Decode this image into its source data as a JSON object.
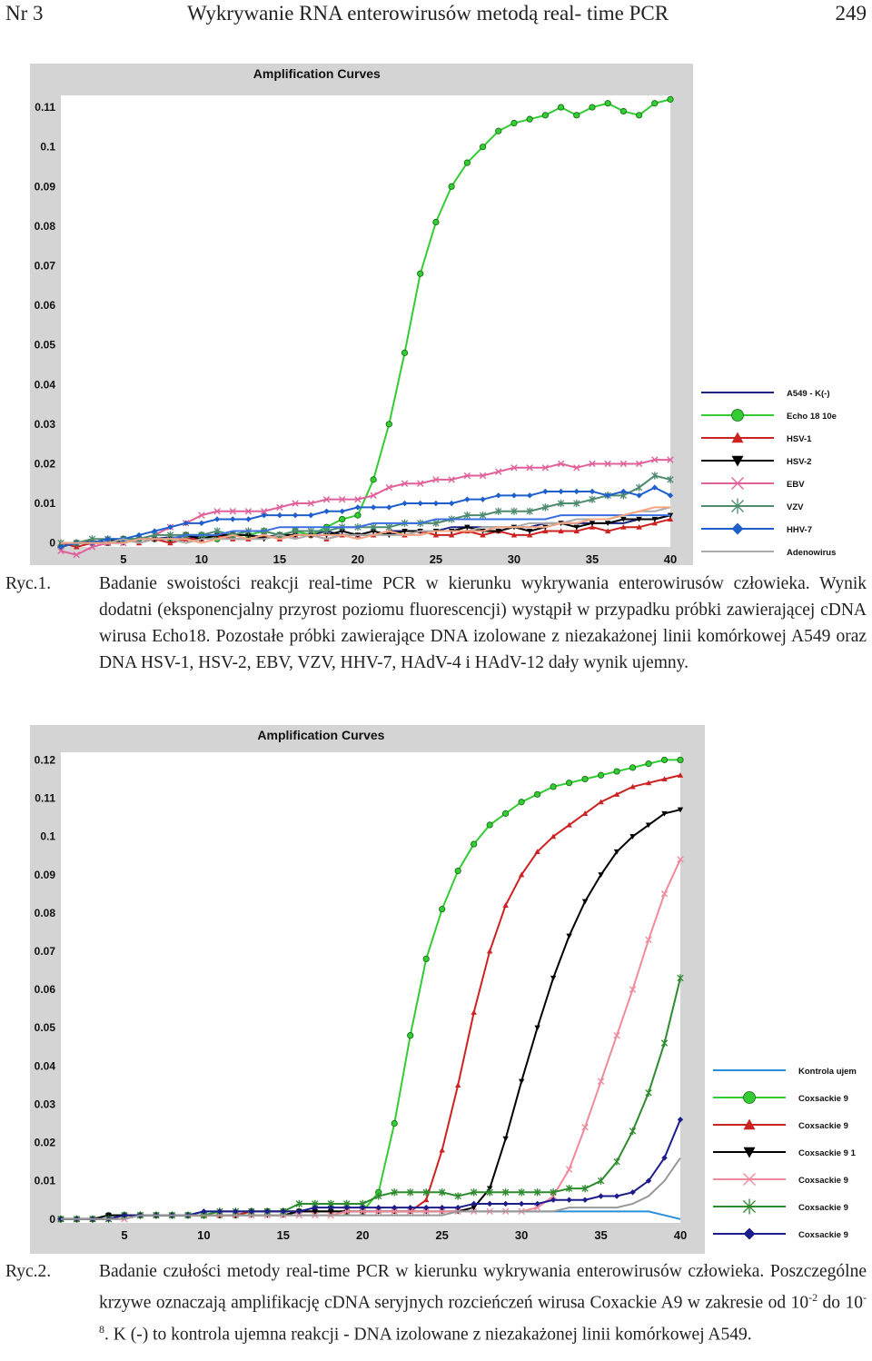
{
  "header": {
    "left": "Nr 3",
    "center": "Wykrywanie RNA enterowirusów metodą real- time PCR",
    "right": "249"
  },
  "figure1": {
    "caption_label": "Ryc.1.",
    "caption_text": "Badanie swoistości reakcji real-time PCR w kierunku wykrywania enterowirusów człowieka. Wynik dodatni (eksponencjalny przyrost poziomu fluorescencji) wystąpił w przypadku próbki zawierającej cDNA wirusa Echo18. Pozostałe próbki zawierające DNA izolowane z niezakażonej linii komórkowej A549 oraz DNA HSV-1, HSV-2, EBV, VZV, HHV-7, HAdV-4 i HAdV-12 dały wynik ujemny.",
    "chart_data": {
      "type": "line",
      "title": "Amplification Curves",
      "xlabel": "",
      "ylabel": "",
      "xlim": [
        1,
        40
      ],
      "ylim": [
        -0.001,
        0.113
      ],
      "x_ticks": [
        5,
        10,
        15,
        20,
        25,
        30,
        35,
        40
      ],
      "y_ticks": [
        0,
        0.01,
        0.02,
        0.03,
        0.04,
        0.05,
        0.06,
        0.07,
        0.08,
        0.09,
        0.1,
        0.11
      ],
      "y_tick_labels": [
        "0",
        "0.01",
        "0.02",
        "0.03",
        "0.04",
        "0.05",
        "0.06",
        "0.07",
        "0.08",
        "0.09",
        "0.1",
        "0.11"
      ],
      "legend_position": "right",
      "grid": false,
      "series": [
        {
          "name": "A549 - K(-)",
          "color": "#1a237e",
          "marker": "none",
          "values": [
            0,
            0,
            0.0005,
            0,
            0.001,
            0.001,
            0.001,
            0.0015,
            0.001,
            0.002,
            0.001,
            0.002,
            0.002,
            0.0015,
            0.002,
            0.002,
            0.002,
            0.003,
            0.002,
            0.002,
            0.002,
            0.003,
            0.003,
            0.003,
            0.003,
            0.004,
            0.004,
            0.004,
            0.004,
            0.004,
            0.004,
            0.005,
            0.005,
            0.005,
            0.005,
            0.005,
            0.005,
            0.006,
            0.006,
            0.007
          ]
        },
        {
          "name": "Echo 18 10e",
          "color": "#33cc33",
          "marker": "circle",
          "values": [
            -0.001,
            0,
            0,
            0,
            0.001,
            0.001,
            0.001,
            0.001,
            0.002,
            0.002,
            0.001,
            0.002,
            0.002,
            0.003,
            0.002,
            0.003,
            0.002,
            0.004,
            0.006,
            0.007,
            0.016,
            0.03,
            0.048,
            0.068,
            0.081,
            0.09,
            0.096,
            0.1,
            0.104,
            0.106,
            0.107,
            0.108,
            0.11,
            0.108,
            0.11,
            0.111,
            0.109,
            0.108,
            0.111,
            0.112
          ]
        },
        {
          "name": "HSV-1",
          "color": "#cc2222",
          "marker": "triangle-up",
          "values": [
            0,
            -0.001,
            0,
            0,
            0.001,
            0,
            0.001,
            0,
            0.001,
            0.001,
            0.002,
            0.001,
            0.001,
            0.002,
            0.001,
            0.002,
            0.002,
            0.001,
            0.002,
            0.002,
            0.002,
            0.003,
            0.002,
            0.003,
            0.002,
            0.002,
            0.003,
            0.002,
            0.003,
            0.002,
            0.002,
            0.003,
            0.003,
            0.003,
            0.004,
            0.003,
            0.004,
            0.004,
            0.005,
            0.006
          ]
        },
        {
          "name": "HSV-2",
          "color": "#000000",
          "marker": "triangle-down",
          "values": [
            -0.001,
            0,
            0,
            0.001,
            0,
            0.001,
            0.001,
            0.001,
            0.002,
            0.001,
            0.002,
            0.002,
            0.002,
            0.001,
            0.002,
            0.002,
            0.002,
            0.002,
            0.003,
            0.002,
            0.003,
            0.002,
            0.003,
            0.003,
            0.003,
            0.003,
            0.004,
            0.003,
            0.003,
            0.004,
            0.003,
            0.004,
            0.005,
            0.004,
            0.005,
            0.005,
            0.006,
            0.006,
            0.006,
            0.007
          ]
        },
        {
          "name": "EBV",
          "color": "#e0609a",
          "marker": "x",
          "values": [
            -0.002,
            -0.003,
            -0.001,
            0,
            0,
            0.001,
            0.002,
            0.004,
            0.005,
            0.007,
            0.008,
            0.008,
            0.008,
            0.008,
            0.009,
            0.01,
            0.01,
            0.011,
            0.011,
            0.011,
            0.012,
            0.014,
            0.015,
            0.015,
            0.016,
            0.016,
            0.017,
            0.017,
            0.018,
            0.019,
            0.019,
            0.019,
            0.02,
            0.019,
            0.02,
            0.02,
            0.02,
            0.02,
            0.021,
            0.021
          ]
        },
        {
          "name": "VZV",
          "color": "#4e8a6e",
          "marker": "asterisk",
          "values": [
            0,
            0,
            0.001,
            0.001,
            0.001,
            0.001,
            0.002,
            0.002,
            0.002,
            0.002,
            0.003,
            0.002,
            0.003,
            0.003,
            0.002,
            0.003,
            0.003,
            0.003,
            0.004,
            0.004,
            0.004,
            0.004,
            0.005,
            0.005,
            0.005,
            0.006,
            0.007,
            0.007,
            0.008,
            0.008,
            0.008,
            0.009,
            0.01,
            0.01,
            0.011,
            0.012,
            0.012,
            0.014,
            0.017,
            0.016
          ]
        },
        {
          "name": "HHV-7",
          "color": "#1f5fcc",
          "marker": "diamond",
          "values": [
            -0.001,
            0,
            0,
            0.001,
            0.001,
            0.002,
            0.003,
            0.004,
            0.005,
            0.005,
            0.006,
            0.006,
            0.006,
            0.007,
            0.007,
            0.007,
            0.007,
            0.008,
            0.008,
            0.009,
            0.009,
            0.009,
            0.01,
            0.01,
            0.01,
            0.01,
            0.011,
            0.011,
            0.012,
            0.012,
            0.012,
            0.013,
            0.013,
            0.013,
            0.013,
            0.012,
            0.013,
            0.012,
            0.014,
            0.012
          ]
        },
        {
          "name": "Adenowirus",
          "color": "#aaaaaa",
          "marker": "none",
          "values": [
            0,
            0,
            0,
            0,
            0.001,
            0,
            0.001,
            0.001,
            0,
            0.001,
            0.001,
            0.001,
            0.001,
            0.001,
            0.002,
            0.001,
            0.002,
            0.001,
            0.002,
            0.002,
            0.002,
            0.002,
            0.002,
            0.003,
            0.003,
            0.003,
            0.003,
            0.004,
            0.004,
            0.004,
            0.005,
            0.005,
            0.005,
            0.006,
            0.006,
            0.006,
            0.007,
            0.008,
            0.008,
            0.009
          ]
        },
        {
          "name": "",
          "color": "#3b6fe0",
          "marker": "none",
          "values": [
            0,
            0,
            0,
            0,
            0,
            0.001,
            0.001,
            0.001,
            0.002,
            0.002,
            0.002,
            0.003,
            0.003,
            0.003,
            0.004,
            0.004,
            0.004,
            0.004,
            0.004,
            0.004,
            0.005,
            0.005,
            0.005,
            0.005,
            0.006,
            0.006,
            0.006,
            0.006,
            0.006,
            0.006,
            0.006,
            0.006,
            0.007,
            0.007,
            0.007,
            0.007,
            0.007,
            0.007,
            0.007,
            0.007
          ]
        },
        {
          "name": "",
          "color": "#f4a582",
          "marker": "none",
          "values": [
            0,
            0,
            0,
            0,
            0,
            0.001,
            0.001,
            0.001,
            0.001,
            0,
            0.001,
            0.002,
            0.001,
            0.002,
            0.001,
            0.002,
            0.002,
            0.002,
            0.002,
            0.001,
            0.002,
            0.003,
            0.002,
            0.002,
            0.003,
            0.003,
            0.003,
            0.003,
            0.004,
            0.004,
            0.004,
            0.004,
            0.005,
            0.005,
            0.006,
            0.006,
            0.007,
            0.008,
            0.009,
            0.009
          ]
        }
      ]
    }
  },
  "figure2": {
    "caption_label": "Ryc.2.",
    "caption_text_1": "Badanie czułości metody real-time PCR w kierunku wykrywania enterowirusów człowieka. Poszczególne krzywe oznaczają amplifikację cDNA seryjnych rozcieńczeń wirusa Coxackie A9 w zakresie od 10",
    "sup_1": "-2",
    "caption_text_2": " do 10",
    "sup_2": "-8",
    "caption_text_3": ". K (-) to kontrola ujemna reakcji - DNA izolowane z niezakażonej linii komórkowej A549.",
    "chart_data": {
      "type": "line",
      "title": "Amplification Curves",
      "xlabel": "",
      "ylabel": "",
      "xlim": [
        1,
        40
      ],
      "ylim": [
        -0.001,
        0.122
      ],
      "x_ticks": [
        5,
        10,
        15,
        20,
        25,
        30,
        35,
        40
      ],
      "y_ticks": [
        0,
        0.01,
        0.02,
        0.03,
        0.04,
        0.05,
        0.06,
        0.07,
        0.08,
        0.09,
        0.1,
        0.11,
        0.12
      ],
      "y_tick_labels": [
        "0",
        "0.01",
        "0.02",
        "0.03",
        "0.04",
        "0.05",
        "0.06",
        "0.07",
        "0.08",
        "0.09",
        "0.1",
        "0.11",
        "0.12"
      ],
      "legend_position": "right",
      "grid": false,
      "series": [
        {
          "name": "Kontrola ujem",
          "color": "#2a8fd8",
          "marker": "none",
          "values": [
            0,
            0,
            0,
            0.001,
            0.001,
            0.001,
            0.001,
            0.001,
            0.001,
            0.002,
            0.002,
            0.002,
            0.002,
            0.002,
            0.002,
            0.002,
            0.002,
            0.002,
            0.002,
            0.002,
            0.002,
            0.002,
            0.002,
            0.002,
            0.002,
            0.002,
            0.002,
            0.002,
            0.002,
            0.002,
            0.002,
            0.002,
            0.002,
            0.002,
            0.002,
            0.002,
            0.002,
            0.002,
            0.001,
            0
          ]
        },
        {
          "name": "Coxsackie 9",
          "color": "#33cc33",
          "marker": "circle",
          "values": [
            0,
            0,
            0,
            0.001,
            0.001,
            0.001,
            0.001,
            0.001,
            0.001,
            0.001,
            0.001,
            0.001,
            0.002,
            0.002,
            0.002,
            0.002,
            0.002,
            0.002,
            0.002,
            0.002,
            0.007,
            0.025,
            0.048,
            0.068,
            0.081,
            0.091,
            0.098,
            0.103,
            0.106,
            0.109,
            0.111,
            0.113,
            0.114,
            0.115,
            0.116,
            0.117,
            0.118,
            0.119,
            0.12,
            0.12
          ]
        },
        {
          "name": "Coxsackie 9",
          "color": "#cc2222",
          "marker": "triangle-up",
          "values": [
            0,
            0,
            0,
            0,
            0.001,
            0.001,
            0.001,
            0.001,
            0.001,
            0.001,
            0.001,
            0.001,
            0.002,
            0.002,
            0.002,
            0.002,
            0.002,
            0.002,
            0.002,
            0.002,
            0.002,
            0.002,
            0.002,
            0.005,
            0.018,
            0.035,
            0.054,
            0.07,
            0.082,
            0.09,
            0.096,
            0.1,
            0.103,
            0.106,
            0.109,
            0.111,
            0.113,
            0.114,
            0.115,
            0.116
          ]
        },
        {
          "name": "Coxsackie 9 1",
          "color": "#000000",
          "marker": "triangle-down",
          "values": [
            0,
            0,
            0,
            0.001,
            0.001,
            0.001,
            0.001,
            0.001,
            0.001,
            0.001,
            0.001,
            0.001,
            0.001,
            0.001,
            0.001,
            0.002,
            0.002,
            0.002,
            0.002,
            0.002,
            0.002,
            0.002,
            0.002,
            0.002,
            0.002,
            0.002,
            0.003,
            0.008,
            0.021,
            0.036,
            0.05,
            0.063,
            0.074,
            0.083,
            0.09,
            0.096,
            0.1,
            0.103,
            0.106,
            0.107
          ]
        },
        {
          "name": "Coxsackie 9",
          "color": "#f08a9a",
          "marker": "x",
          "values": [
            0,
            0,
            0,
            0,
            0,
            0.001,
            0.001,
            0.001,
            0.001,
            0.001,
            0.001,
            0.001,
            0.001,
            0.001,
            0.001,
            0.001,
            0.001,
            0.001,
            0.002,
            0.002,
            0.002,
            0.002,
            0.002,
            0.002,
            0.002,
            0.002,
            0.002,
            0.002,
            0.002,
            0.002,
            0.003,
            0.006,
            0.013,
            0.024,
            0.036,
            0.048,
            0.06,
            0.073,
            0.085,
            0.094
          ]
        },
        {
          "name": "Coxsackie 9",
          "color": "#2e8b2e",
          "marker": "asterisk",
          "values": [
            0,
            0,
            0,
            0,
            0.001,
            0.001,
            0.001,
            0.001,
            0.001,
            0.001,
            0.002,
            0.002,
            0.002,
            0.002,
            0.002,
            0.004,
            0.004,
            0.004,
            0.004,
            0.004,
            0.006,
            0.007,
            0.007,
            0.007,
            0.007,
            0.006,
            0.007,
            0.007,
            0.007,
            0.007,
            0.007,
            0.007,
            0.008,
            0.008,
            0.01,
            0.015,
            0.023,
            0.033,
            0.046,
            0.063
          ]
        },
        {
          "name": "Coxsackie 9",
          "color": "#1c1c8a",
          "marker": "diamond",
          "values": [
            0,
            0,
            0,
            0,
            0.001,
            0.001,
            0.001,
            0.001,
            0.001,
            0.002,
            0.002,
            0.002,
            0.002,
            0.002,
            0.002,
            0.002,
            0.003,
            0.003,
            0.003,
            0.003,
            0.003,
            0.003,
            0.003,
            0.003,
            0.003,
            0.003,
            0.004,
            0.004,
            0.004,
            0.004,
            0.004,
            0.005,
            0.005,
            0.005,
            0.006,
            0.006,
            0.007,
            0.01,
            0.016,
            0.026
          ]
        },
        {
          "name": "",
          "color": "#999999",
          "marker": "none",
          "values": [
            0,
            0,
            0,
            0,
            0,
            0.001,
            0.001,
            0.001,
            0.001,
            0.001,
            0.001,
            0.001,
            0.001,
            0.001,
            0.001,
            0.001,
            0.001,
            0.001,
            0.001,
            0.001,
            0.001,
            0.001,
            0.001,
            0.001,
            0.001,
            0.002,
            0.002,
            0.002,
            0.002,
            0.002,
            0.002,
            0.002,
            0.003,
            0.003,
            0.003,
            0.003,
            0.004,
            0.006,
            0.01,
            0.016
          ]
        }
      ]
    }
  }
}
